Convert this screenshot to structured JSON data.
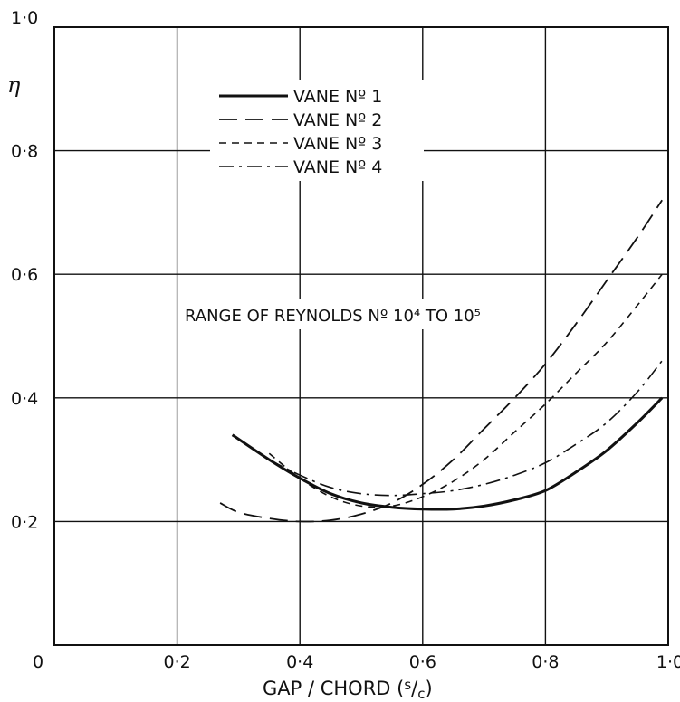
{
  "chart_data": {
    "type": "line",
    "xlabel": "GAP / CHORD  (s/c)",
    "ylabel": "η",
    "xlim": [
      0,
      1.0
    ],
    "ylim": [
      0,
      1.0
    ],
    "x_ticks": [
      "0",
      "0·2",
      "0·4",
      "0·6",
      "0·8",
      "1·0"
    ],
    "y_ticks": [
      "0·2",
      "0·4",
      "0·6",
      "0·8",
      "1·0"
    ],
    "grid": true,
    "legend_position": "top-center",
    "annotation": "RANGE OF REYNOLDS Nº 10⁴ TO 10⁵",
    "series": [
      {
        "name": "VANE Nº 1",
        "style": "solid",
        "x": [
          0.29,
          0.35,
          0.4,
          0.45,
          0.5,
          0.55,
          0.6,
          0.65,
          0.7,
          0.75,
          0.8,
          0.85,
          0.9,
          0.95,
          0.99
        ],
        "y": [
          0.34,
          0.3,
          0.27,
          0.245,
          0.23,
          0.223,
          0.22,
          0.22,
          0.225,
          0.235,
          0.25,
          0.28,
          0.315,
          0.36,
          0.4
        ]
      },
      {
        "name": "VANE Nº 2",
        "style": "dashed",
        "x": [
          0.27,
          0.3,
          0.35,
          0.4,
          0.45,
          0.5,
          0.55,
          0.6,
          0.65,
          0.7,
          0.75,
          0.8,
          0.85,
          0.9,
          0.95,
          0.99
        ],
        "y": [
          0.23,
          0.215,
          0.205,
          0.2,
          0.202,
          0.212,
          0.23,
          0.26,
          0.3,
          0.35,
          0.4,
          0.455,
          0.52,
          0.59,
          0.66,
          0.72
        ]
      },
      {
        "name": "VANE Nº 3",
        "style": "short-dashed",
        "x": [
          0.35,
          0.4,
          0.45,
          0.5,
          0.55,
          0.6,
          0.65,
          0.7,
          0.75,
          0.8,
          0.85,
          0.9,
          0.95,
          0.99
        ],
        "y": [
          0.31,
          0.27,
          0.24,
          0.225,
          0.225,
          0.24,
          0.265,
          0.3,
          0.345,
          0.39,
          0.44,
          0.49,
          0.55,
          0.6
        ]
      },
      {
        "name": "VANE Nº 4",
        "style": "dash-dot",
        "x": [
          0.35,
          0.4,
          0.45,
          0.5,
          0.55,
          0.6,
          0.65,
          0.7,
          0.75,
          0.8,
          0.85,
          0.9,
          0.95,
          0.99
        ],
        "y": [
          0.3,
          0.275,
          0.255,
          0.245,
          0.242,
          0.245,
          0.25,
          0.26,
          0.275,
          0.295,
          0.325,
          0.36,
          0.41,
          0.46
        ]
      }
    ]
  },
  "colors": {
    "ink": "#111111",
    "background": "#ffffff"
  }
}
